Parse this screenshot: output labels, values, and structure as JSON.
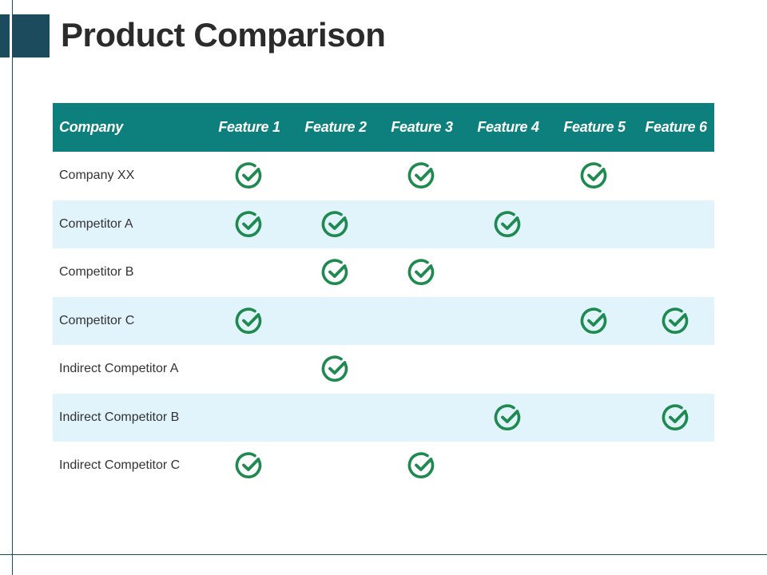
{
  "title": "Product Comparison",
  "colors": {
    "accent": "#1d4b5e",
    "header_bg": "#0d7f7c",
    "row_alt_bg": "#e1f3fb",
    "check": "#1e8a4f"
  },
  "table": {
    "headers": [
      "Company",
      "Feature 1",
      "Feature 2",
      "Feature 3",
      "Feature 4",
      "Feature 5",
      "Feature 6"
    ],
    "rows": [
      {
        "company": "Company XX",
        "features": [
          true,
          false,
          true,
          false,
          true,
          false
        ]
      },
      {
        "company": "Competitor A",
        "features": [
          true,
          true,
          false,
          true,
          false,
          false
        ]
      },
      {
        "company": "Competitor B",
        "features": [
          false,
          true,
          true,
          false,
          false,
          false
        ]
      },
      {
        "company": "Competitor C",
        "features": [
          true,
          false,
          false,
          false,
          true,
          true
        ]
      },
      {
        "company": "Indirect Competitor A",
        "features": [
          false,
          true,
          false,
          false,
          false,
          false
        ]
      },
      {
        "company": "Indirect Competitor B",
        "features": [
          false,
          false,
          false,
          true,
          false,
          true
        ]
      },
      {
        "company": "Indirect Competitor C",
        "features": [
          true,
          false,
          true,
          false,
          false,
          false
        ]
      }
    ]
  },
  "icons": {
    "feature_check": "check-circle-icon"
  }
}
